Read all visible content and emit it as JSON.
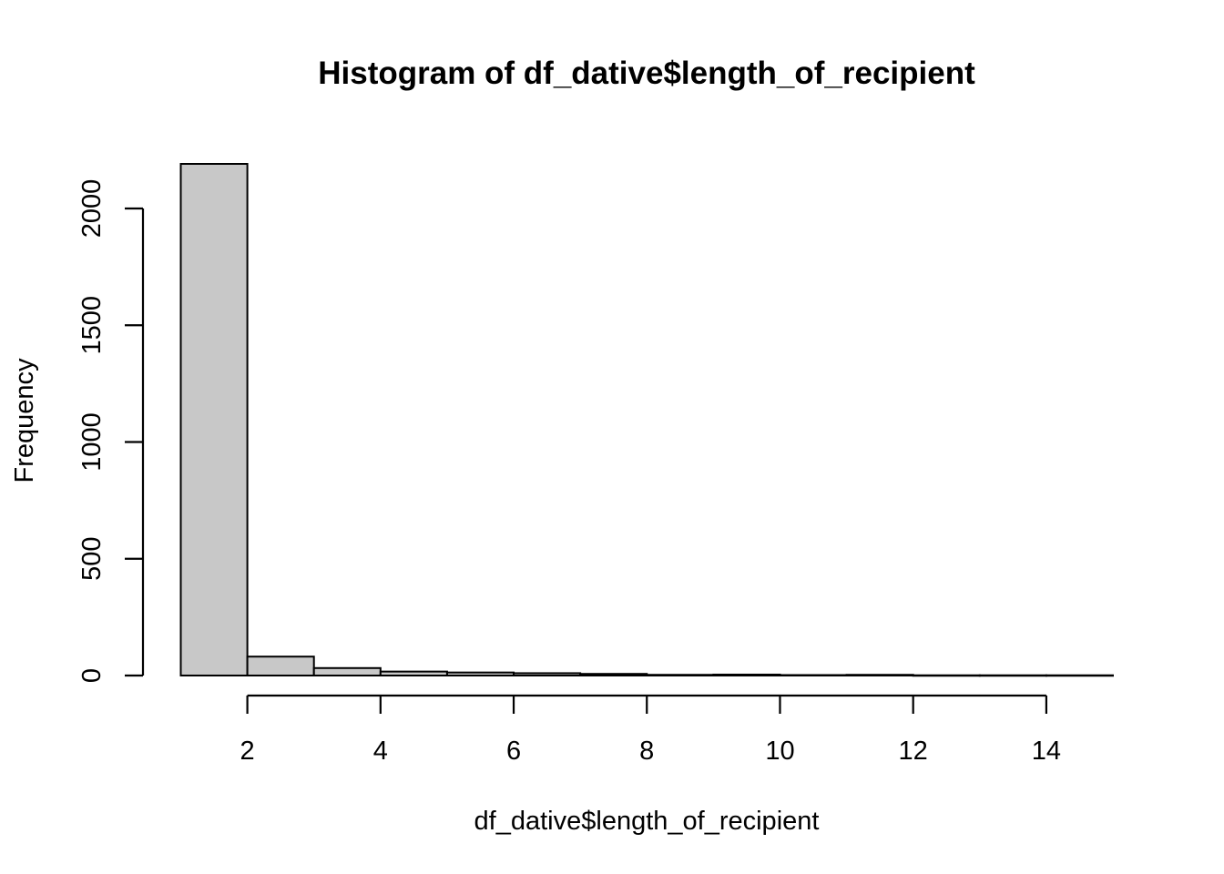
{
  "chart_data": {
    "type": "bar",
    "title": "Histogram of df_dative$length_of_recipient",
    "xlabel": "df_dative$length_of_recipient",
    "ylabel": "Frequency",
    "bins": [
      {
        "start": 1,
        "end": 2,
        "count": 2191
      },
      {
        "start": 2,
        "end": 3,
        "count": 81
      },
      {
        "start": 3,
        "end": 4,
        "count": 32
      },
      {
        "start": 4,
        "end": 5,
        "count": 17
      },
      {
        "start": 5,
        "end": 6,
        "count": 13
      },
      {
        "start": 6,
        "end": 7,
        "count": 10
      },
      {
        "start": 7,
        "end": 8,
        "count": 7
      },
      {
        "start": 8,
        "end": 9,
        "count": 3
      },
      {
        "start": 9,
        "end": 10,
        "count": 4
      },
      {
        "start": 10,
        "end": 11,
        "count": 2
      },
      {
        "start": 11,
        "end": 12,
        "count": 3
      },
      {
        "start": 12,
        "end": 13,
        "count": 1
      },
      {
        "start": 13,
        "end": 14,
        "count": 1
      },
      {
        "start": 14,
        "end": 15,
        "count": 1
      }
    ],
    "xlim": [
      1,
      15
    ],
    "ylim": [
      0,
      2191
    ],
    "x_ticks": [
      2,
      4,
      6,
      8,
      10,
      12,
      14
    ],
    "y_ticks": [
      0,
      500,
      1000,
      1500,
      2000
    ],
    "x_tick_labels": [
      "2",
      "4",
      "6",
      "8",
      "10",
      "12",
      "14"
    ],
    "y_tick_labels": [
      "0",
      "500",
      "1000",
      "1500",
      "2000"
    ],
    "bar_fill": "#c8c8c8",
    "bar_stroke": "#000000",
    "grid": false,
    "legend": "none"
  }
}
